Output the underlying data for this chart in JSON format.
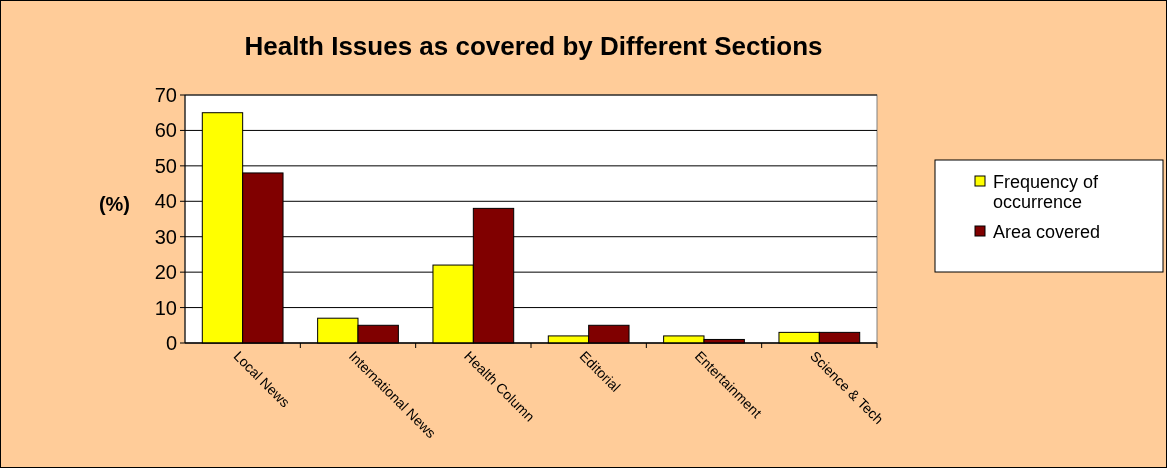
{
  "chart_data": {
    "type": "bar",
    "title": "Health Issues as covered by Different Sections",
    "ylabel": "(%)",
    "categories": [
      "Local News",
      "International News",
      "Health Column",
      "Editorial",
      "Entertainment",
      "Science & Tech"
    ],
    "series": [
      {
        "name": "Frequency of occurrence",
        "color": "#ffff00",
        "values": [
          65,
          7,
          22,
          2,
          2,
          3
        ]
      },
      {
        "name": "Area covered",
        "color": "#800000",
        "values": [
          48,
          5,
          38,
          5,
          1,
          3
        ]
      }
    ],
    "ylim": [
      0,
      70
    ],
    "yticks": [
      0,
      10,
      20,
      30,
      40,
      50,
      60,
      70
    ],
    "grid": "y",
    "legend": "right"
  }
}
